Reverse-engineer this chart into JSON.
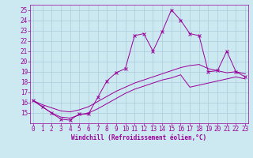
{
  "xlabel": "Windchill (Refroidissement éolien,°C)",
  "bg_color": "#cce8f0",
  "line_color": "#990099",
  "x_ticks": [
    0,
    1,
    2,
    3,
    4,
    5,
    6,
    7,
    8,
    9,
    10,
    11,
    12,
    13,
    14,
    15,
    16,
    17,
    18,
    19,
    20,
    21,
    22,
    23
  ],
  "ylim": [
    14.0,
    25.5
  ],
  "xlim": [
    -0.3,
    23.3
  ],
  "y_ticks": [
    15,
    16,
    17,
    18,
    19,
    20,
    21,
    22,
    23,
    24,
    25
  ],
  "series1_x": [
    0,
    1,
    2,
    3,
    4,
    5,
    6,
    7,
    8,
    9,
    10,
    11,
    12,
    13,
    14,
    15,
    16,
    17,
    18,
    19,
    20,
    21,
    22,
    23
  ],
  "series1_y": [
    16.2,
    15.6,
    15.0,
    14.4,
    14.3,
    14.9,
    14.9,
    16.5,
    18.1,
    18.9,
    19.3,
    22.5,
    22.7,
    21.0,
    22.9,
    25.0,
    24.0,
    22.7,
    22.5,
    19.0,
    19.1,
    21.0,
    19.0,
    18.5
  ],
  "series2_x": [
    0,
    1,
    2,
    3,
    4,
    5,
    6,
    7,
    8,
    9,
    10,
    11,
    12,
    13,
    14,
    15,
    16,
    17,
    18,
    19,
    20,
    21,
    22,
    23
  ],
  "series2_y": [
    16.2,
    15.8,
    15.5,
    15.2,
    15.1,
    15.3,
    15.6,
    16.1,
    16.6,
    17.1,
    17.5,
    17.9,
    18.2,
    18.5,
    18.8,
    19.1,
    19.4,
    19.6,
    19.7,
    19.3,
    19.1,
    18.9,
    19.0,
    18.8
  ],
  "series3_x": [
    0,
    1,
    2,
    3,
    4,
    5,
    6,
    7,
    8,
    9,
    10,
    11,
    12,
    13,
    14,
    15,
    16,
    17,
    18,
    19,
    20,
    21,
    22,
    23
  ],
  "series3_y": [
    16.2,
    15.6,
    15.0,
    14.6,
    14.5,
    14.8,
    15.0,
    15.4,
    15.9,
    16.4,
    16.9,
    17.3,
    17.6,
    17.9,
    18.2,
    18.4,
    18.7,
    17.5,
    17.7,
    17.9,
    18.1,
    18.3,
    18.5,
    18.3
  ],
  "tick_fontsize": 5.5,
  "xlabel_fontsize": 5.5,
  "grid_color": "#aaccdd",
  "grid_lw": 0.5
}
